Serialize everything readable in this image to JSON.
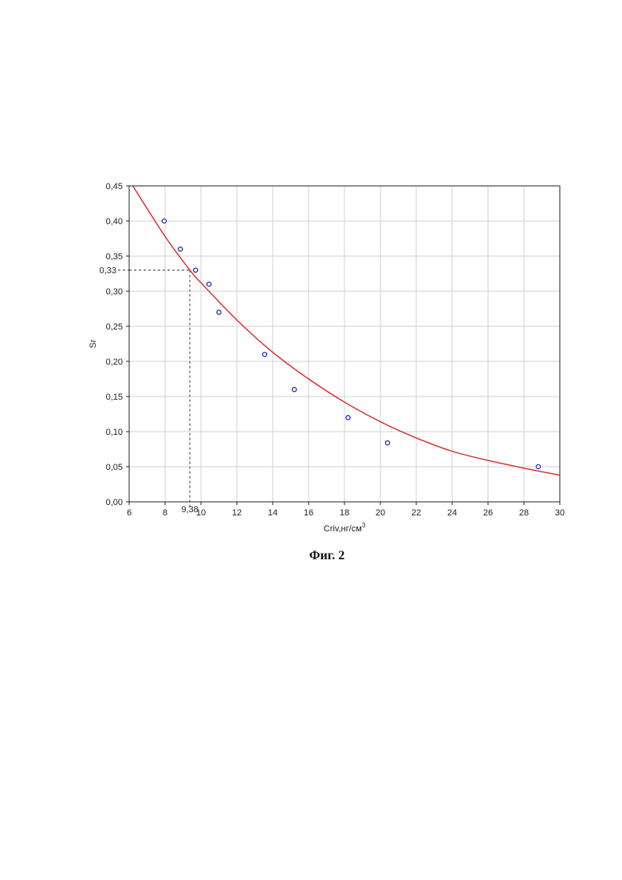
{
  "figure_caption": "Фиг. 2",
  "chart_data": {
    "type": "scatter",
    "xlabel": "Criv,нг/см",
    "xlabel_sup": "3",
    "ylabel": "Sr",
    "xlim": [
      6,
      30
    ],
    "ylim": [
      0.0,
      0.45
    ],
    "x_ticks": [
      6,
      8,
      10,
      12,
      14,
      16,
      18,
      20,
      22,
      24,
      26,
      28,
      30
    ],
    "x_tick_labels": [
      "6",
      "8",
      "10",
      "12",
      "14",
      "16",
      "18",
      "20",
      "22",
      "24",
      "26",
      "28",
      "30"
    ],
    "y_ticks": [
      0.0,
      0.05,
      0.1,
      0.15,
      0.2,
      0.25,
      0.3,
      0.35,
      0.4,
      0.45
    ],
    "y_tick_labels": [
      "0,00",
      "0,05",
      "0,10",
      "0,15",
      "0,20",
      "0,25",
      "0,30",
      "0,35",
      "0,40",
      "0,45"
    ],
    "grid": true,
    "points": [
      {
        "x": 7.95,
        "y": 0.4
      },
      {
        "x": 8.85,
        "y": 0.36
      },
      {
        "x": 9.7,
        "y": 0.33
      },
      {
        "x": 10.45,
        "y": 0.31
      },
      {
        "x": 11.0,
        "y": 0.27
      },
      {
        "x": 13.55,
        "y": 0.21
      },
      {
        "x": 15.2,
        "y": 0.16
      },
      {
        "x": 18.2,
        "y": 0.12
      },
      {
        "x": 20.4,
        "y": 0.084
      },
      {
        "x": 28.8,
        "y": 0.05
      }
    ],
    "fit_curve": {
      "x": [
        6.2,
        8,
        9.38,
        10,
        12,
        14,
        16,
        18,
        20,
        22,
        24,
        26,
        28,
        30
      ],
      "y": [
        0.45,
        0.378,
        0.33,
        0.312,
        0.259,
        0.213,
        0.175,
        0.142,
        0.114,
        0.091,
        0.072,
        0.059,
        0.048,
        0.038
      ]
    },
    "annotation": {
      "x": 9.38,
      "y": 0.33,
      "x_label": "9,38",
      "y_label": "0,33"
    },
    "colors": {
      "curve": "#d62a2a",
      "points": "#1f2f9a",
      "grid": "#d0d0d0",
      "guide": "#333333"
    }
  }
}
